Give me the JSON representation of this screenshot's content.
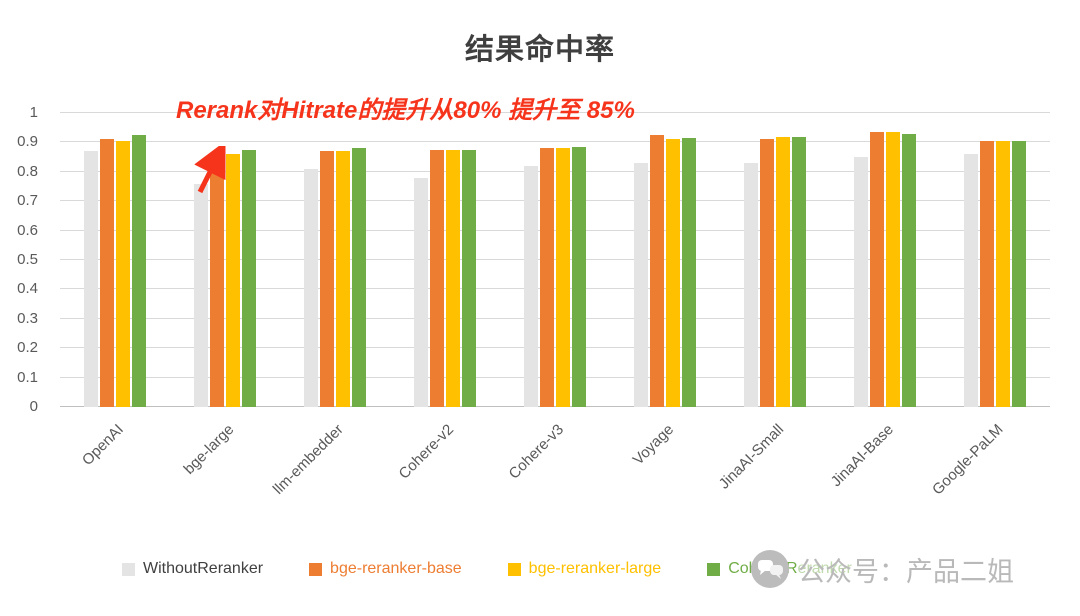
{
  "chart_data": {
    "type": "bar",
    "title": "结果命中率",
    "categories": [
      "OpenAI",
      "bge-large",
      "llm-embedder",
      "Cohere-v2",
      "Cohere-v3",
      "Voyage",
      "JinaAI-Small",
      "JinaAI-Base",
      "Google-PaLM"
    ],
    "series": [
      {
        "name": "WithoutReranker",
        "color": "#e4e4e4",
        "label_color": "#404040",
        "values": [
          0.87,
          0.76,
          0.81,
          0.78,
          0.82,
          0.83,
          0.83,
          0.85,
          0.86
        ]
      },
      {
        "name": "bge-reranker-base",
        "color": "#ed7d31",
        "label_color": "#ed7d31",
        "values": [
          0.91,
          0.855,
          0.87,
          0.875,
          0.88,
          0.925,
          0.91,
          0.935,
          0.905
        ]
      },
      {
        "name": "bge-reranker-large",
        "color": "#ffc000",
        "label_color": "#ffc000",
        "values": [
          0.905,
          0.86,
          0.872,
          0.875,
          0.88,
          0.91,
          0.92,
          0.935,
          0.905
        ]
      },
      {
        "name": "Cohere-Reranker",
        "color": "#70ad47",
        "label_color": "#70ad47",
        "values": [
          0.925,
          0.875,
          0.88,
          0.875,
          0.885,
          0.915,
          0.92,
          0.93,
          0.905
        ]
      }
    ],
    "ylim": [
      0,
      1
    ],
    "yticks": [
      0,
      0.1,
      0.2,
      0.3,
      0.4,
      0.5,
      0.6,
      0.7,
      0.8,
      0.9,
      1
    ],
    "grid": true,
    "legend_position": "bottom",
    "xlabel": "",
    "ylabel": ""
  },
  "annotation": {
    "text": "Rerank对Hitrate的提升从80% 提升至 85%",
    "color": "#f6341c"
  },
  "watermark": {
    "text": "公众号：产品二姐"
  }
}
